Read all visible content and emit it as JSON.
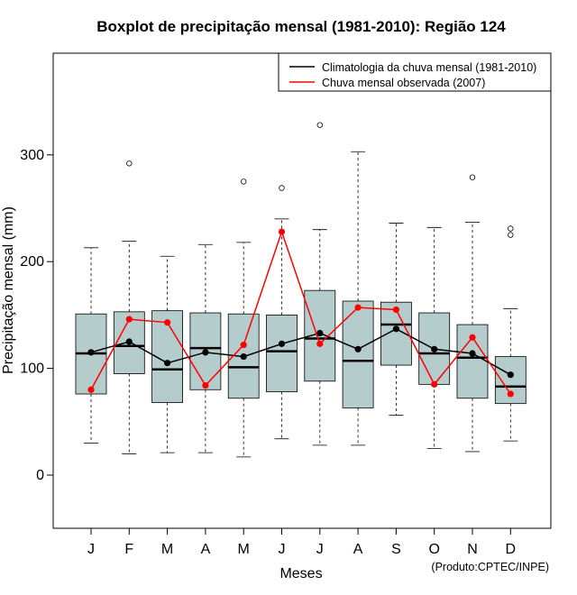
{
  "chart_data": {
    "type": "boxplot",
    "title": "Boxplot de precipitação mensal (1981-2010): Região 124",
    "xlabel": "Meses",
    "ylabel": "Precipitação mensal (mm)",
    "credit": "(Produto:CPTEC/INPE)",
    "ylim": [
      -50,
      395
    ],
    "yticks": [
      0,
      100,
      200,
      300
    ],
    "categories": [
      "J",
      "F",
      "M",
      "A",
      "M",
      "J",
      "J",
      "A",
      "S",
      "O",
      "N",
      "D"
    ],
    "boxes": [
      {
        "min": 30,
        "q1": 76,
        "median": 114,
        "q3": 151,
        "max": 213,
        "outliers": []
      },
      {
        "min": 20,
        "q1": 95,
        "median": 121,
        "q3": 153,
        "max": 219,
        "outliers": [
          292
        ]
      },
      {
        "min": 21,
        "q1": 68,
        "median": 99,
        "q3": 154,
        "max": 205,
        "outliers": []
      },
      {
        "min": 21,
        "q1": 80,
        "median": 119,
        "q3": 152,
        "max": 216,
        "outliers": []
      },
      {
        "min": 17,
        "q1": 72,
        "median": 101,
        "q3": 151,
        "max": 218,
        "outliers": [
          275
        ]
      },
      {
        "min": 34,
        "q1": 78,
        "median": 116,
        "q3": 150,
        "max": 240,
        "outliers": [
          269
        ]
      },
      {
        "min": 28,
        "q1": 88,
        "median": 128,
        "q3": 173,
        "max": 230,
        "outliers": [
          328
        ]
      },
      {
        "min": 28,
        "q1": 63,
        "median": 107,
        "q3": 163,
        "max": 303,
        "outliers": []
      },
      {
        "min": 56,
        "q1": 103,
        "median": 141,
        "q3": 162,
        "max": 236,
        "outliers": []
      },
      {
        "min": 25,
        "q1": 85,
        "median": 114,
        "q3": 152,
        "max": 232,
        "outliers": []
      },
      {
        "min": 22,
        "q1": 72,
        "median": 110,
        "q3": 141,
        "max": 237,
        "outliers": [
          279
        ]
      },
      {
        "min": 32,
        "q1": 67,
        "median": 83,
        "q3": 111,
        "max": 156,
        "outliers": [
          225,
          231
        ]
      }
    ],
    "series": [
      {
        "name": "Climatologia da chuva mensal (1981-2010)",
        "color": "#000000",
        "values": [
          115,
          125,
          105,
          115,
          111,
          123,
          133,
          118,
          137,
          118,
          114,
          94
        ]
      },
      {
        "name": "Chuva mensal observada (2007)",
        "color": "#ff0000",
        "values": [
          80,
          146,
          143,
          84,
          122,
          228,
          123,
          157,
          155,
          85,
          129,
          76
        ]
      }
    ],
    "box_fill": "#b5cccc",
    "legend_position": "top-right"
  }
}
